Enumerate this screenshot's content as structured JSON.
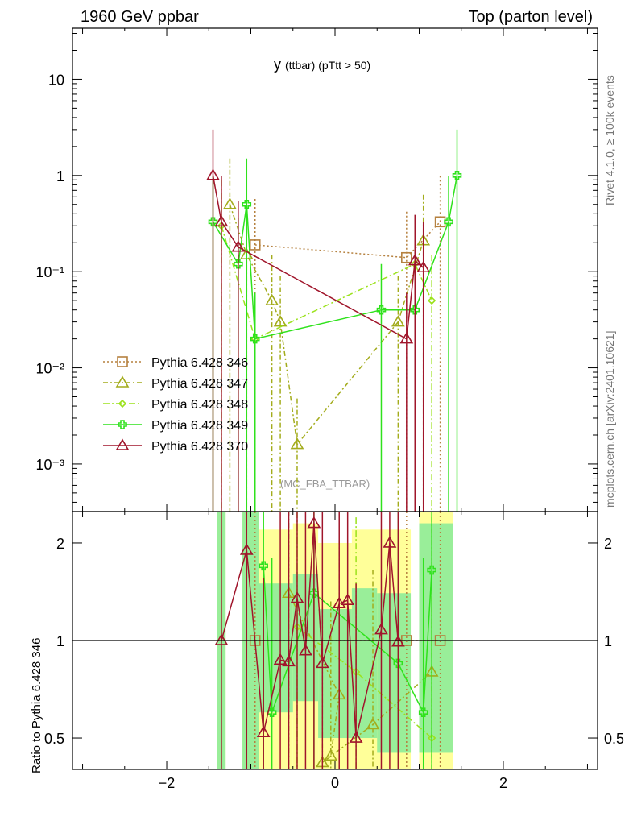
{
  "chart_data": {
    "type": "line",
    "header_left": "1960 GeV ppbar",
    "header_right": "Top (parton level)",
    "title_main": "y",
    "title_sub": "(ttbar)  (pTtt > 50)",
    "side_label_top": "Rivet 4.1.0, ≥ 100k events",
    "side_label_bottom": "mcplots.cern.ch [arXiv:2401.10621]",
    "watermark": "(MC_FBA_TTBAR)",
    "ratio_ylabel": "Ratio to Pythia 6.428 346",
    "xlim": [
      -3.12,
      3.12
    ],
    "ylim": [
      0.00032,
      34
    ],
    "yscale": "log",
    "ratio_ylim": [
      0.4,
      2.5
    ],
    "ratio_yscale": "log",
    "x_ticks": [
      {
        "v": -2,
        "label": "−2"
      },
      {
        "v": 0,
        "label": "0"
      },
      {
        "v": 2,
        "label": "2"
      }
    ],
    "y_ticks": [
      {
        "v": 10,
        "label": "10"
      },
      {
        "v": 1,
        "label": "1"
      },
      {
        "v": 0.1,
        "label": "10⁻¹"
      },
      {
        "v": 0.01,
        "label": "10⁻²"
      },
      {
        "v": 0.001,
        "label": "10⁻³"
      }
    ],
    "ratio_ticks": [
      {
        "v": 2,
        "label": "2"
      },
      {
        "v": 1,
        "label": "1"
      },
      {
        "v": 0.5,
        "label": "0.5"
      }
    ],
    "legend_position": "center-left",
    "series": [
      {
        "name": "Pythia 6.428 346",
        "color": "#b5813f",
        "dash": "2,3",
        "marker": "square",
        "points": [
          [
            -0.95,
            0.19
          ],
          [
            0.85,
            0.14
          ],
          [
            1.25,
            0.33
          ]
        ],
        "ratio": [
          [
            -0.95,
            1.0
          ],
          [
            0.85,
            1.0
          ],
          [
            1.25,
            1.0
          ]
        ]
      },
      {
        "name": "Pythia 6.428 347",
        "color": "#a3ac1c",
        "dash": "6,3,2,3",
        "marker": "triangle",
        "points": [
          [
            -1.25,
            0.5
          ],
          [
            -1.05,
            0.15
          ],
          [
            -0.75,
            0.05
          ],
          [
            -0.65,
            0.03
          ],
          [
            -0.45,
            0.0016
          ],
          [
            0.75,
            0.03
          ],
          [
            1.05,
            0.21
          ]
        ],
        "ratio": [
          [
            -0.55,
            1.4
          ],
          [
            0.05,
            0.68
          ],
          [
            -0.05,
            0.44
          ],
          [
            -0.15,
            0.42
          ],
          [
            0.45,
            0.55
          ],
          [
            1.15,
            0.8
          ]
        ]
      },
      {
        "name": "Pythia 6.428 348",
        "color": "#9be21c",
        "dash": "8,3,2,3",
        "marker": "diamond",
        "points": [
          [
            -1.35,
            0.3
          ],
          [
            -0.95,
            0.02
          ],
          [
            0.95,
            0.12
          ],
          [
            1.15,
            0.05
          ]
        ],
        "ratio": [
          [
            -0.45,
            1.1
          ],
          [
            0.25,
            0.8
          ],
          [
            1.15,
            0.5
          ]
        ]
      },
      {
        "name": "Pythia 6.428 349",
        "color": "#2fe21c",
        "dash": "",
        "marker": "plus",
        "points": [
          [
            -1.45,
            0.33
          ],
          [
            -1.15,
            0.12
          ],
          [
            -1.05,
            0.5
          ],
          [
            -0.95,
            0.02
          ],
          [
            0.55,
            0.04
          ],
          [
            0.95,
            0.04
          ],
          [
            1.35,
            0.33
          ],
          [
            1.45,
            1.0
          ]
        ],
        "ratio": [
          [
            -0.85,
            1.7
          ],
          [
            -0.75,
            0.6
          ],
          [
            -0.25,
            1.4
          ],
          [
            0.75,
            0.85
          ],
          [
            1.05,
            0.6
          ],
          [
            1.15,
            1.65
          ]
        ]
      },
      {
        "name": "Pythia 6.428 370",
        "color": "#a0152b",
        "dash": "",
        "marker": "triangle",
        "points": [
          [
            -1.45,
            1.0
          ],
          [
            -1.35,
            0.33
          ],
          [
            -1.15,
            0.18
          ],
          [
            0.85,
            0.02
          ],
          [
            0.95,
            0.13
          ],
          [
            1.05,
            0.11
          ]
        ],
        "ratio": [
          [
            -1.35,
            1.0
          ],
          [
            -1.05,
            1.9
          ],
          [
            -0.85,
            0.52
          ],
          [
            -0.65,
            0.87
          ],
          [
            -0.55,
            0.86
          ],
          [
            -0.45,
            1.35
          ],
          [
            -0.35,
            0.93
          ],
          [
            -0.25,
            2.3
          ],
          [
            -0.15,
            0.85
          ],
          [
            0.05,
            1.3
          ],
          [
            0.15,
            1.33
          ],
          [
            0.25,
            0.5
          ],
          [
            0.55,
            1.08
          ],
          [
            0.65,
            2.0
          ],
          [
            0.75,
            0.99
          ]
        ]
      }
    ],
    "bands": {
      "yellow": {
        "color": "#ffff99",
        "bins": [
          [
            -1.4,
            -1.3,
            0.4,
            2.5
          ],
          [
            -1.1,
            -0.9,
            0.4,
            2.5
          ],
          [
            -0.9,
            -0.5,
            0.4,
            2.2
          ],
          [
            -0.5,
            -0.2,
            0.4,
            2.3
          ],
          [
            -0.2,
            0.2,
            0.4,
            2.0
          ],
          [
            0.2,
            0.9,
            0.4,
            2.2
          ],
          [
            1.0,
            1.4,
            0.4,
            2.5
          ]
        ]
      },
      "green": {
        "color": "#99ee99",
        "bins": [
          [
            -1.4,
            -1.3,
            0.4,
            2.5
          ],
          [
            -1.1,
            -0.9,
            0.4,
            2.5
          ],
          [
            -0.9,
            -0.5,
            0.6,
            1.5
          ],
          [
            -0.5,
            -0.2,
            0.65,
            1.6
          ],
          [
            -0.2,
            0.2,
            0.5,
            1.25
          ],
          [
            0.2,
            0.5,
            0.5,
            1.45
          ],
          [
            0.5,
            0.9,
            0.45,
            1.4
          ],
          [
            1.0,
            1.4,
            0.45,
            2.3
          ]
        ]
      }
    }
  }
}
